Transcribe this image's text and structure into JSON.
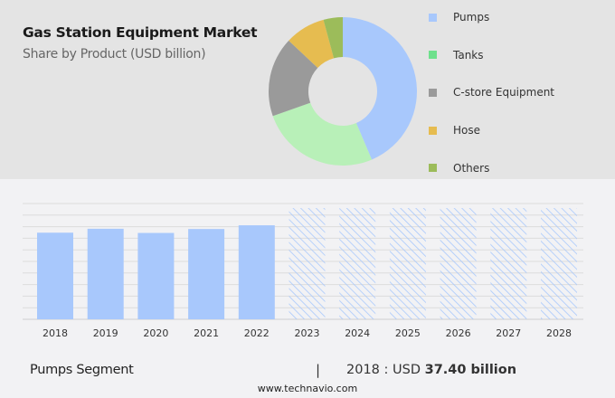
{
  "header": {
    "title": "Gas Station Equipment Market",
    "subtitle": "Share by Product (USD billion)"
  },
  "chart_data": [
    {
      "type": "pie",
      "variant": "donut",
      "legend_placement": "right",
      "categories": [
        "Pumps",
        "Tanks",
        "C-store Equipment",
        "Hose",
        "Others"
      ],
      "values": [
        43.6,
        26.0,
        17.4,
        8.8,
        4.2
      ],
      "colors": [
        "#a8c8fc",
        "#b8f0b8",
        "#9a9a9a",
        "#e6bc50",
        "#9cbc5a"
      ],
      "legend_colors": [
        "#a8c8fc",
        "#6ee08c",
        "#9a9a9a",
        "#e6bc50",
        "#9cbc5a"
      ]
    },
    {
      "type": "bar",
      "categories": [
        "2018",
        "2019",
        "2020",
        "2021",
        "2022",
        "2023",
        "2024",
        "2025",
        "2026",
        "2027",
        "2028"
      ],
      "values": [
        37.4,
        39.1,
        37.3,
        39.0,
        40.6,
        null,
        null,
        null,
        null,
        null,
        null
      ],
      "forecast": [
        "2023",
        "2024",
        "2025",
        "2026",
        "2027",
        "2028"
      ],
      "ylim": [
        0,
        50
      ],
      "grid": true,
      "color": "#a8c8fc"
    }
  ],
  "footer": {
    "segment": "Pumps Segment",
    "separator": "|",
    "year_label": "2018 : USD",
    "value": "37.40 billion",
    "site": "www.technavio.com"
  }
}
